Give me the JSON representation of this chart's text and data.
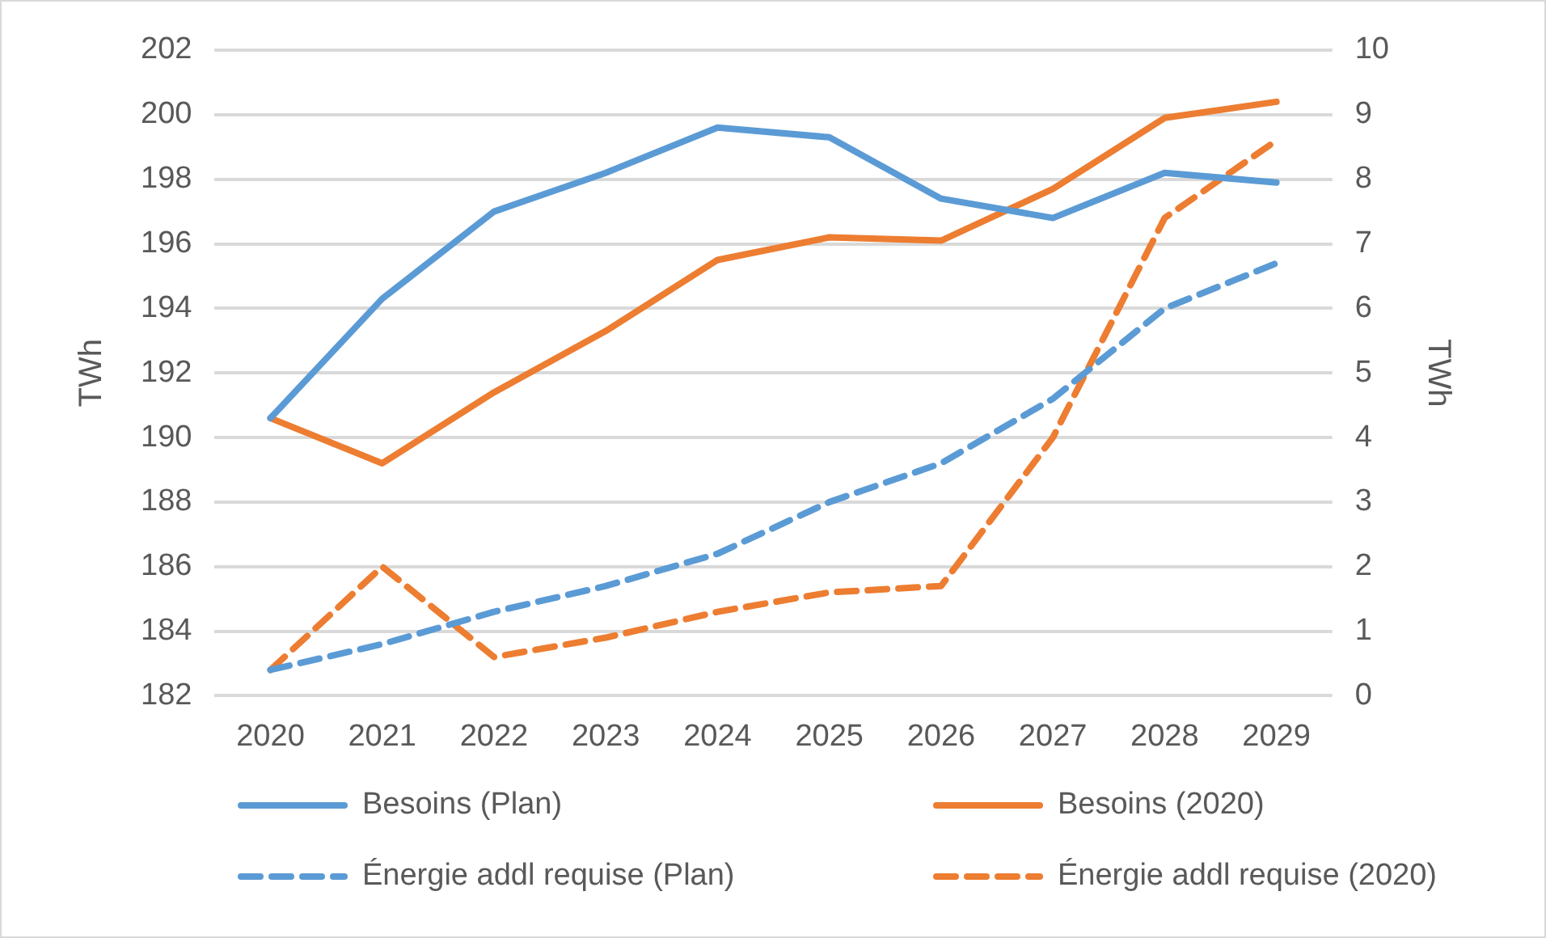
{
  "chart_data": {
    "type": "line",
    "ylabel": "TWh",
    "y2label": "TWh",
    "categories": [
      "2020",
      "2021",
      "2022",
      "2023",
      "2024",
      "2025",
      "2026",
      "2027",
      "2028",
      "2029"
    ],
    "series": [
      {
        "name": "Besoins (Plan)",
        "color": "#5b9bd5",
        "line_style": "solid",
        "values": [
          190.6,
          194.3,
          197.0,
          198.2,
          199.6,
          199.3,
          197.4,
          196.8,
          198.2,
          197.9
        ]
      },
      {
        "name": "Besoins (2020)",
        "color": "#ed7d31",
        "line_style": "solid",
        "values": [
          190.6,
          189.2,
          191.4,
          193.3,
          195.5,
          196.2,
          196.1,
          197.7,
          199.9,
          200.4
        ]
      },
      {
        "name": "Énergie addl requise (Plan)",
        "color": "#5b9bd5",
        "line_style": "dashed",
        "axis": "y2",
        "values": [
          0.4,
          0.8,
          1.3,
          1.7,
          2.2,
          3.0,
          3.6,
          4.6,
          6.0,
          6.7
        ]
      },
      {
        "name": "Énergie addl requise (2020)",
        "color": "#ed7d31",
        "line_style": "dashed",
        "axis": "y2",
        "values": [
          0.4,
          2.0,
          0.6,
          0.9,
          1.3,
          1.6,
          1.7,
          4.0,
          7.4,
          8.6
        ]
      }
    ],
    "ylim": [
      182,
      202
    ],
    "yticks": [
      182,
      184,
      186,
      188,
      190,
      192,
      194,
      196,
      198,
      200,
      202
    ],
    "y2lim": [
      0,
      10
    ],
    "y2ticks": [
      0,
      1,
      2,
      3,
      4,
      5,
      6,
      7,
      8,
      9,
      10
    ],
    "grid": "y",
    "legend": "bottom",
    "marker": "none"
  }
}
